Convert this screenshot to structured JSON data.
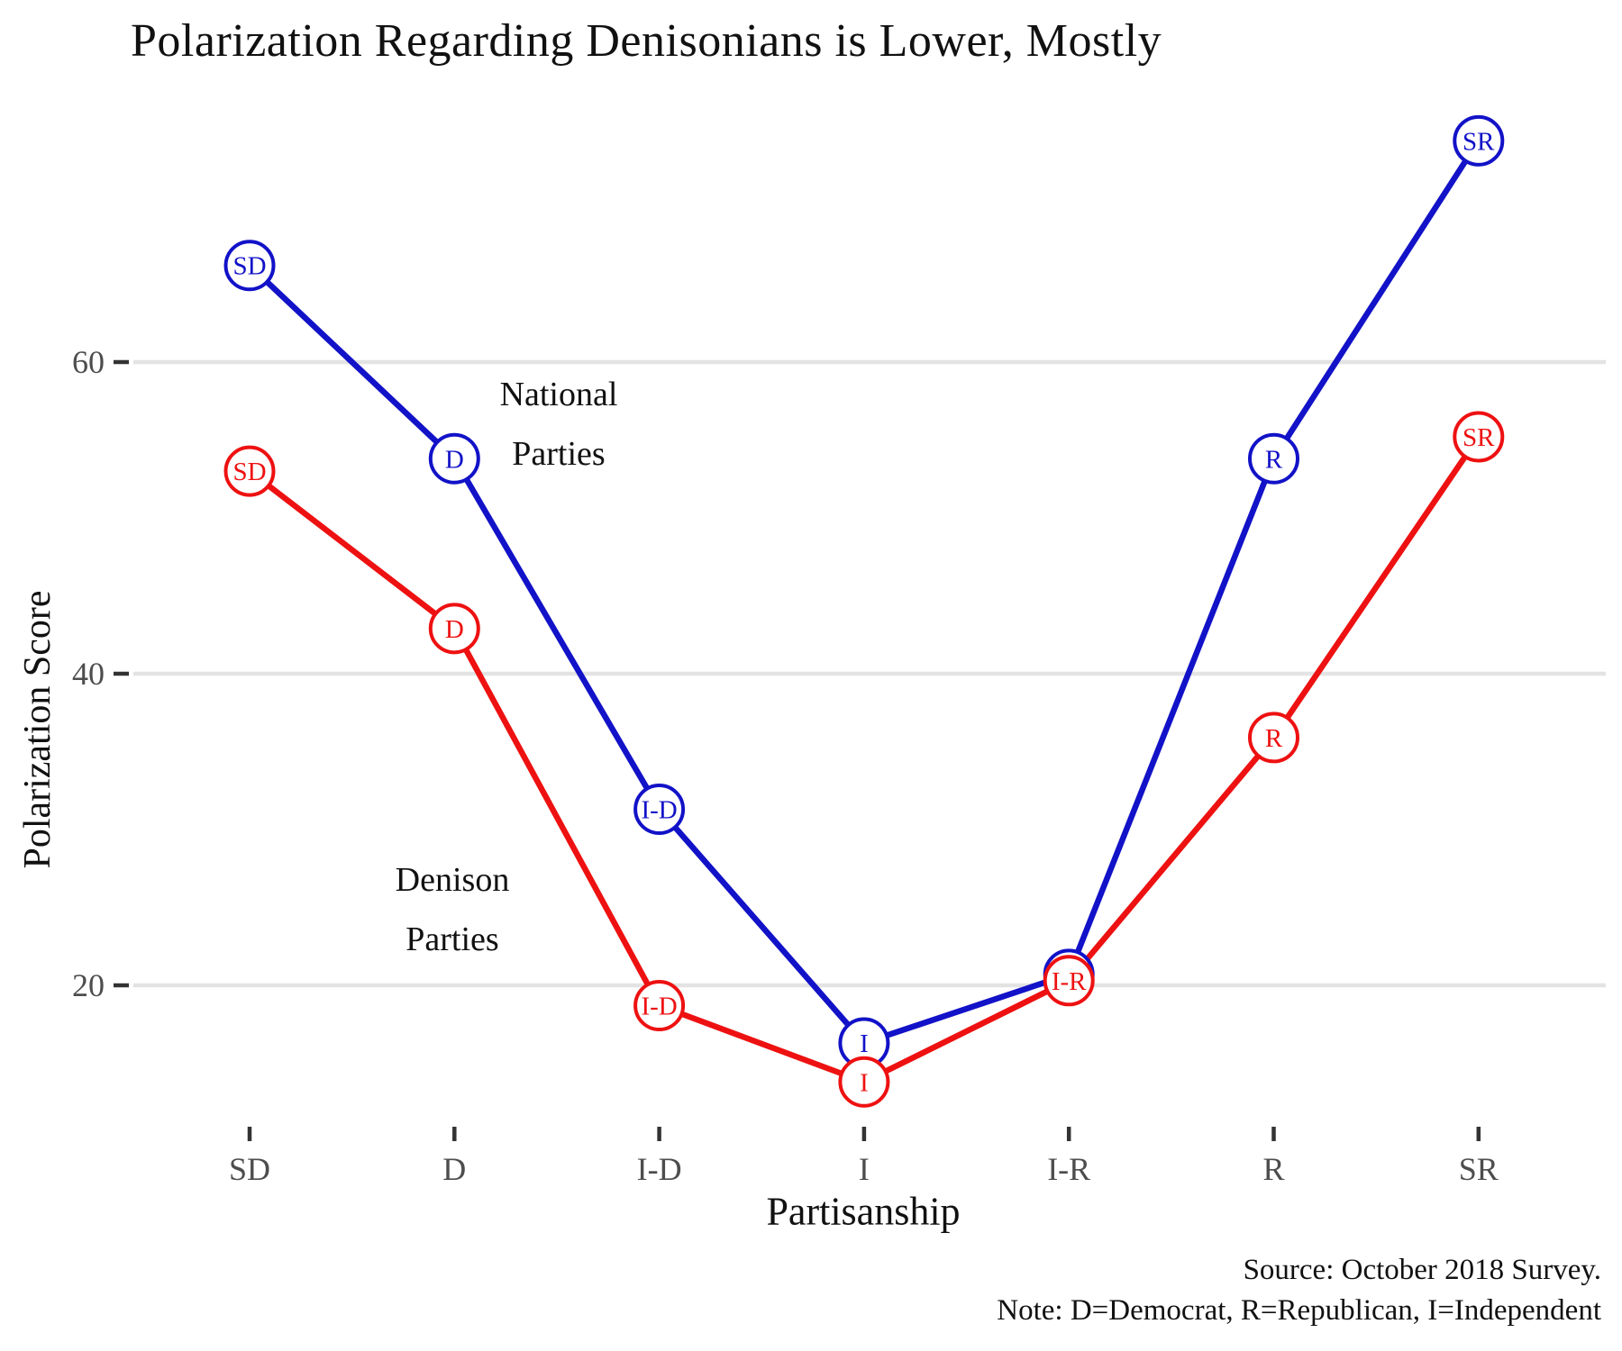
{
  "title": "Polarization Regarding Denisonians is Lower, Mostly",
  "caption": {
    "source": "Source: October 2018 Survey.",
    "note": "Note: D=Democrat, R=Republican, I=Independent"
  },
  "chart_data": {
    "type": "line",
    "title": "Polarization Regarding Denisonians is Lower, Mostly",
    "xlabel": "Partisanship",
    "ylabel": "Polarization Score",
    "categories": [
      "SD",
      "D",
      "I-D",
      "I",
      "I-R",
      "R",
      "SR"
    ],
    "series": [
      {
        "name": "National Parties",
        "color": "#1212C8",
        "values": [
          66.2,
          53.8,
          31.3,
          16.3,
          20.7,
          53.8,
          74.2
        ],
        "point_labels": [
          "SD",
          "D",
          "I-D",
          "I",
          "I-R",
          "R",
          "SR"
        ]
      },
      {
        "name": "Denison Parties",
        "color": "#EE1111",
        "values": [
          53.0,
          42.9,
          18.7,
          13.8,
          20.3,
          35.9,
          55.2
        ],
        "point_labels": [
          "SD",
          "D",
          "I-D",
          "I",
          "I-R",
          "R",
          "SR"
        ]
      }
    ],
    "y_ticks": [
      20,
      40,
      60
    ],
    "ylim": [
      10,
      78
    ],
    "grid": "horizontal-only",
    "legend_position": "none-direct-labels",
    "annotations": [
      {
        "id": "national",
        "lines": [
          "National",
          "Parties"
        ]
      },
      {
        "id": "denison",
        "lines": [
          "Denison",
          "Parties"
        ]
      }
    ],
    "marker": "open-circle-with-label"
  },
  "colors": {
    "national_blue": "#1212C8",
    "denison_red": "#EE1111",
    "gridline": "#E3E3E3",
    "tick_mark": "#333333",
    "axis_text": "#4D4D4D",
    "text": "#111111",
    "background": "#FFFFFF"
  }
}
